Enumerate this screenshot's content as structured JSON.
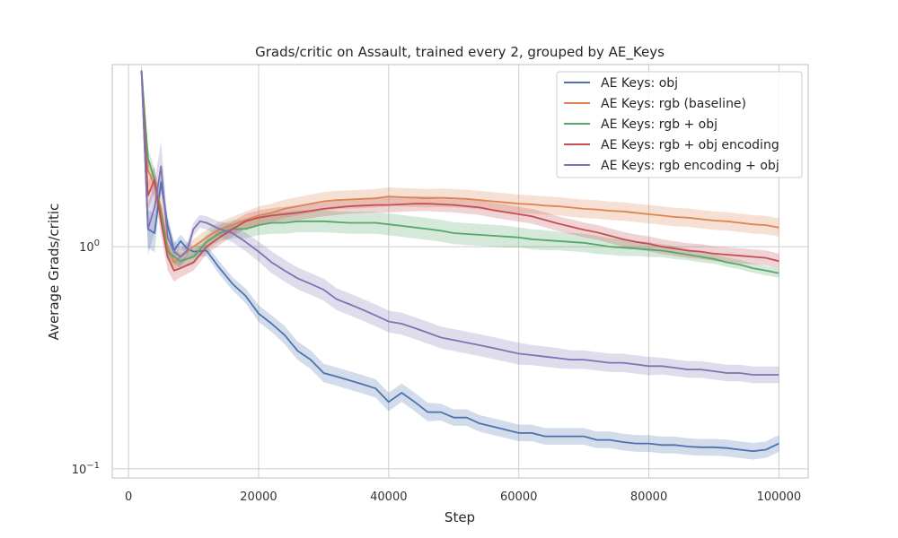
{
  "chart_data": {
    "type": "line",
    "title": "Grads/critic on Assault, trained every 2, grouped by AE_Keys",
    "xlabel": "Step",
    "ylabel": "Average Grads/critic",
    "xlim": [
      -2500,
      104500
    ],
    "ylim": [
      0.091,
      6.6
    ],
    "yscale": "log",
    "grid": true,
    "legend_position": "top-right",
    "xticks": [
      0,
      20000,
      40000,
      60000,
      80000,
      100000
    ],
    "xtick_labels": [
      "0",
      "20000",
      "40000",
      "60000",
      "80000",
      "100000"
    ],
    "yticks": [
      {
        "value": 1,
        "base": "10",
        "exp": "0"
      },
      {
        "value": 0.1,
        "base": "10",
        "exp": "−1"
      }
    ],
    "band_note": "shaded bands show spread around each mean line",
    "series": [
      {
        "name": "AE Keys: obj",
        "color": "#4c72b0",
        "x": [
          2000,
          3000,
          4000,
          5000,
          6000,
          7000,
          8000,
          9000,
          10000,
          12000,
          14000,
          16000,
          18000,
          20000,
          22000,
          24000,
          26000,
          28000,
          30000,
          32000,
          34000,
          36000,
          38000,
          40000,
          42000,
          44000,
          46000,
          48000,
          50000,
          52000,
          54000,
          56000,
          58000,
          60000,
          62000,
          64000,
          66000,
          68000,
          70000,
          72000,
          74000,
          76000,
          78000,
          80000,
          82000,
          84000,
          86000,
          88000,
          90000,
          92000,
          94000,
          96000,
          98000,
          100000
        ],
        "y": [
          6.2,
          1.2,
          1.15,
          1.95,
          1.25,
          0.96,
          1.06,
          0.98,
          0.95,
          0.96,
          0.8,
          0.68,
          0.6,
          0.5,
          0.45,
          0.4,
          0.34,
          0.31,
          0.27,
          0.26,
          0.25,
          0.24,
          0.23,
          0.2,
          0.22,
          0.2,
          0.18,
          0.18,
          0.17,
          0.17,
          0.16,
          0.155,
          0.15,
          0.145,
          0.145,
          0.14,
          0.14,
          0.14,
          0.14,
          0.135,
          0.135,
          0.132,
          0.13,
          0.13,
          0.128,
          0.128,
          0.126,
          0.125,
          0.125,
          0.124,
          0.122,
          0.12,
          0.122,
          0.13
        ],
        "band": [
          0.1,
          0.22,
          0.22,
          0.12,
          0.1,
          0.08,
          0.07,
          0.07,
          0.06,
          0.06,
          0.07,
          0.07,
          0.08,
          0.09,
          0.09,
          0.1,
          0.1,
          0.1,
          0.1,
          0.1,
          0.1,
          0.1,
          0.1,
          0.1,
          0.1,
          0.1,
          0.1,
          0.09,
          0.09,
          0.09,
          0.09,
          0.09,
          0.09,
          0.09,
          0.09,
          0.09,
          0.09,
          0.09,
          0.09,
          0.09,
          0.09,
          0.09,
          0.09,
          0.09,
          0.09,
          0.09,
          0.09,
          0.09,
          0.09,
          0.09,
          0.09,
          0.09,
          0.09,
          0.09
        ]
      },
      {
        "name": "AE Keys: rgb (baseline)",
        "color": "#dd8452",
        "x": [
          2000,
          3000,
          4000,
          5000,
          6000,
          7000,
          8000,
          10000,
          12000,
          14000,
          16000,
          18000,
          20000,
          22000,
          24000,
          26000,
          28000,
          30000,
          32000,
          34000,
          36000,
          38000,
          40000,
          42000,
          44000,
          46000,
          48000,
          50000,
          52000,
          54000,
          56000,
          58000,
          60000,
          62000,
          64000,
          66000,
          68000,
          70000,
          72000,
          74000,
          76000,
          78000,
          80000,
          82000,
          84000,
          86000,
          88000,
          90000,
          92000,
          94000,
          96000,
          98000,
          100000
        ],
        "y": [
          6.2,
          2.2,
          1.9,
          1.5,
          1.0,
          0.85,
          0.9,
          1.0,
          1.1,
          1.2,
          1.25,
          1.32,
          1.38,
          1.42,
          1.48,
          1.52,
          1.56,
          1.6,
          1.62,
          1.63,
          1.64,
          1.65,
          1.68,
          1.67,
          1.66,
          1.65,
          1.66,
          1.65,
          1.64,
          1.62,
          1.6,
          1.58,
          1.56,
          1.55,
          1.53,
          1.52,
          1.5,
          1.48,
          1.47,
          1.45,
          1.44,
          1.42,
          1.4,
          1.38,
          1.36,
          1.35,
          1.33,
          1.31,
          1.3,
          1.28,
          1.26,
          1.25,
          1.22
        ],
        "band": [
          0.08,
          0.15,
          0.15,
          0.12,
          0.1,
          0.1,
          0.09,
          0.08,
          0.08,
          0.08,
          0.09,
          0.09,
          0.1,
          0.1,
          0.1,
          0.1,
          0.1,
          0.1,
          0.1,
          0.1,
          0.1,
          0.1,
          0.1,
          0.1,
          0.1,
          0.1,
          0.1,
          0.1,
          0.1,
          0.1,
          0.1,
          0.1,
          0.1,
          0.1,
          0.1,
          0.1,
          0.1,
          0.1,
          0.1,
          0.1,
          0.1,
          0.1,
          0.1,
          0.1,
          0.1,
          0.1,
          0.1,
          0.1,
          0.1,
          0.1,
          0.1,
          0.1,
          0.1
        ]
      },
      {
        "name": "AE Keys: rgb + obj",
        "color": "#55a868",
        "x": [
          2000,
          3000,
          4000,
          5000,
          6000,
          7000,
          8000,
          10000,
          12000,
          14000,
          16000,
          18000,
          20000,
          22000,
          24000,
          26000,
          28000,
          30000,
          32000,
          34000,
          36000,
          38000,
          40000,
          42000,
          44000,
          46000,
          48000,
          50000,
          52000,
          54000,
          56000,
          58000,
          60000,
          62000,
          64000,
          66000,
          68000,
          70000,
          72000,
          74000,
          76000,
          78000,
          80000,
          82000,
          84000,
          86000,
          88000,
          90000,
          92000,
          94000,
          96000,
          98000,
          100000
        ],
        "y": [
          6.2,
          2.5,
          2.0,
          1.4,
          0.95,
          0.9,
          0.86,
          0.9,
          1.05,
          1.15,
          1.2,
          1.2,
          1.25,
          1.28,
          1.28,
          1.3,
          1.3,
          1.3,
          1.29,
          1.28,
          1.28,
          1.28,
          1.26,
          1.24,
          1.22,
          1.2,
          1.18,
          1.15,
          1.14,
          1.13,
          1.12,
          1.11,
          1.1,
          1.08,
          1.07,
          1.06,
          1.05,
          1.04,
          1.02,
          1.0,
          0.99,
          0.98,
          0.97,
          0.96,
          0.94,
          0.92,
          0.9,
          0.88,
          0.85,
          0.83,
          0.8,
          0.78,
          0.76
        ],
        "band": [
          0.08,
          0.12,
          0.12,
          0.1,
          0.08,
          0.08,
          0.08,
          0.08,
          0.08,
          0.09,
          0.1,
          0.1,
          0.11,
          0.12,
          0.12,
          0.12,
          0.12,
          0.12,
          0.12,
          0.12,
          0.12,
          0.12,
          0.12,
          0.12,
          0.12,
          0.12,
          0.12,
          0.12,
          0.12,
          0.12,
          0.12,
          0.12,
          0.11,
          0.11,
          0.11,
          0.1,
          0.1,
          0.1,
          0.1,
          0.09,
          0.09,
          0.08,
          0.08,
          0.07,
          0.07,
          0.06,
          0.06,
          0.05,
          0.05,
          0.05,
          0.05,
          0.05,
          0.05
        ]
      },
      {
        "name": "AE Keys: rgb + obj encoding",
        "color": "#c44e52",
        "x": [
          2000,
          3000,
          4000,
          5000,
          6000,
          7000,
          8000,
          10000,
          12000,
          14000,
          16000,
          18000,
          20000,
          22000,
          24000,
          26000,
          28000,
          30000,
          32000,
          34000,
          36000,
          38000,
          40000,
          42000,
          44000,
          46000,
          48000,
          50000,
          52000,
          54000,
          56000,
          58000,
          60000,
          62000,
          64000,
          66000,
          68000,
          70000,
          72000,
          74000,
          76000,
          78000,
          80000,
          82000,
          84000,
          86000,
          88000,
          90000,
          92000,
          94000,
          96000,
          98000,
          100000
        ],
        "y": [
          6.2,
          1.7,
          2.0,
          1.3,
          0.9,
          0.78,
          0.8,
          0.85,
          1.0,
          1.1,
          1.2,
          1.3,
          1.35,
          1.38,
          1.4,
          1.42,
          1.45,
          1.48,
          1.5,
          1.52,
          1.53,
          1.54,
          1.54,
          1.55,
          1.56,
          1.56,
          1.55,
          1.54,
          1.52,
          1.5,
          1.46,
          1.43,
          1.4,
          1.37,
          1.32,
          1.27,
          1.23,
          1.19,
          1.16,
          1.12,
          1.08,
          1.05,
          1.03,
          1.0,
          0.98,
          0.96,
          0.95,
          0.93,
          0.92,
          0.91,
          0.9,
          0.89,
          0.86
        ],
        "band": [
          0.08,
          0.15,
          0.15,
          0.15,
          0.15,
          0.12,
          0.1,
          0.09,
          0.08,
          0.08,
          0.08,
          0.08,
          0.08,
          0.08,
          0.08,
          0.08,
          0.08,
          0.08,
          0.08,
          0.08,
          0.08,
          0.08,
          0.08,
          0.08,
          0.08,
          0.08,
          0.08,
          0.08,
          0.08,
          0.08,
          0.08,
          0.08,
          0.08,
          0.08,
          0.08,
          0.08,
          0.08,
          0.08,
          0.08,
          0.08,
          0.08,
          0.08,
          0.08,
          0.08,
          0.08,
          0.08,
          0.08,
          0.08,
          0.08,
          0.08,
          0.08,
          0.08,
          0.08
        ]
      },
      {
        "name": "AE Keys: rgb encoding + obj",
        "color": "#8172b3",
        "x": [
          2000,
          3000,
          4000,
          5000,
          6000,
          7000,
          8000,
          9000,
          10000,
          11000,
          12000,
          14000,
          16000,
          18000,
          20000,
          22000,
          24000,
          26000,
          28000,
          30000,
          32000,
          34000,
          36000,
          38000,
          40000,
          42000,
          44000,
          46000,
          48000,
          50000,
          52000,
          54000,
          56000,
          58000,
          60000,
          62000,
          64000,
          66000,
          68000,
          70000,
          72000,
          74000,
          76000,
          78000,
          80000,
          82000,
          84000,
          86000,
          88000,
          90000,
          92000,
          94000,
          96000,
          98000,
          100000
        ],
        "y": [
          6.2,
          1.2,
          1.5,
          2.3,
          1.1,
          0.95,
          0.9,
          0.96,
          1.2,
          1.3,
          1.28,
          1.2,
          1.15,
          1.05,
          0.95,
          0.85,
          0.78,
          0.72,
          0.68,
          0.64,
          0.58,
          0.55,
          0.52,
          0.49,
          0.46,
          0.45,
          0.43,
          0.41,
          0.39,
          0.38,
          0.37,
          0.36,
          0.35,
          0.34,
          0.33,
          0.325,
          0.32,
          0.315,
          0.31,
          0.31,
          0.305,
          0.3,
          0.3,
          0.295,
          0.29,
          0.29,
          0.285,
          0.28,
          0.28,
          0.275,
          0.27,
          0.27,
          0.265,
          0.265,
          0.265
        ],
        "band": [
          0.08,
          0.3,
          0.3,
          0.3,
          0.2,
          0.12,
          0.1,
          0.08,
          0.07,
          0.07,
          0.07,
          0.08,
          0.1,
          0.1,
          0.11,
          0.12,
          0.12,
          0.12,
          0.12,
          0.12,
          0.12,
          0.12,
          0.12,
          0.12,
          0.12,
          0.12,
          0.12,
          0.12,
          0.12,
          0.12,
          0.12,
          0.12,
          0.12,
          0.12,
          0.12,
          0.11,
          0.11,
          0.11,
          0.1,
          0.1,
          0.1,
          0.1,
          0.1,
          0.1,
          0.1,
          0.09,
          0.09,
          0.09,
          0.09,
          0.09,
          0.09,
          0.09,
          0.09,
          0.09,
          0.09
        ]
      }
    ]
  }
}
